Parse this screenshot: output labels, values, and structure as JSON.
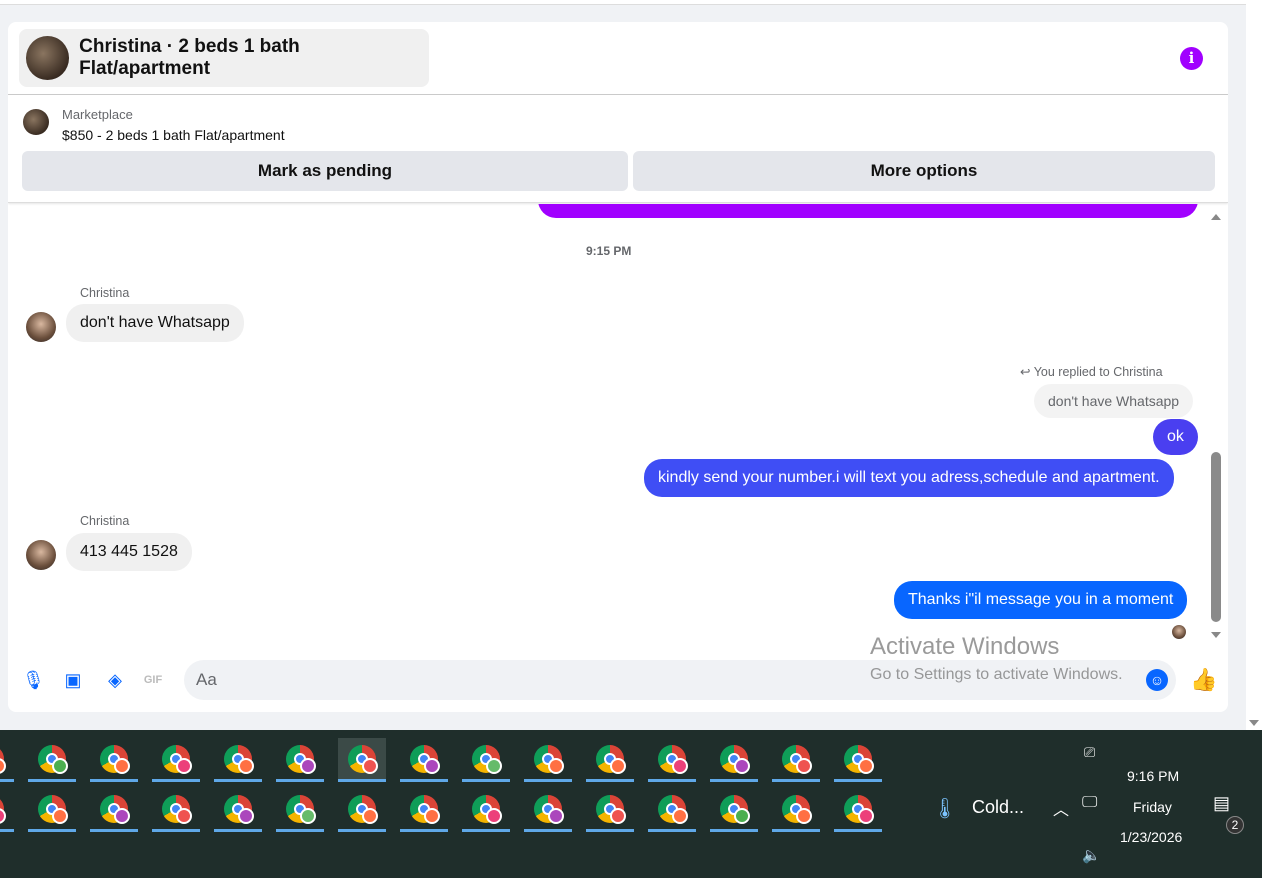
{
  "header": {
    "title": "Christina · 2 beds 1 bath Flat/apartment",
    "info_icon": "info-icon"
  },
  "listing": {
    "source": "Marketplace",
    "summary": "$850 - 2 beds 1 bath Flat/apartment",
    "mark_pending": "Mark as pending",
    "more_options": "More options"
  },
  "messages": {
    "timestamp": "9:15 PM",
    "sender": "Christina",
    "msg1": "don't have Whatsapp",
    "reply_label": "You replied to Christina",
    "quoted": "don't have Whatsapp",
    "ok": "ok",
    "send_number": "kindly send your number.i will text you adress,schedule and apartment.",
    "phone": "413 445 1528",
    "thanks": "Thanks i\"il message you in a moment"
  },
  "colors": {
    "purple": "#a100ff",
    "blue_mid": "#4a3ff0",
    "blue": "#0866ff"
  },
  "composer": {
    "placeholder": "Aa"
  },
  "watermark": {
    "title": "Activate Windows",
    "subtitle": "Go to Settings to activate Windows."
  },
  "taskbar": {
    "weather": "Cold...",
    "time": "9:16 PM",
    "day": "Friday",
    "date": "1/23/2026",
    "notifications": "2"
  }
}
